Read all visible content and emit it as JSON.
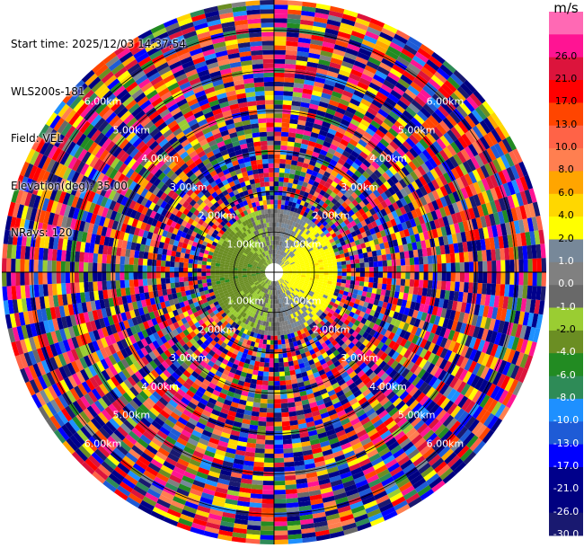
{
  "info": {
    "start_time": "Start time: 2025/12/03 14:37:54",
    "instrument": "WLS200s-181",
    "field": "Field: VEL",
    "elevation": "Elevation(deg): 35.00",
    "nrays": "NRays: 120"
  },
  "colorbar": {
    "unit": "m/s",
    "bins": [
      {
        "label": "-30.0",
        "color": "#191970"
      },
      {
        "label": "-26.0",
        "color": "#000080"
      },
      {
        "label": "-21.0",
        "color": "#00008b"
      },
      {
        "label": "-17.0",
        "color": "#0000ff"
      },
      {
        "label": "-13.0",
        "color": "#1e5bd6"
      },
      {
        "label": "-10.0",
        "color": "#1e90ff"
      },
      {
        "label": "-8.0",
        "color": "#2e8b57"
      },
      {
        "label": "-6.0",
        "color": "#228b22"
      },
      {
        "label": "-4.0",
        "color": "#6b8e23"
      },
      {
        "label": "-2.0",
        "color": "#9acd32"
      },
      {
        "label": "-1.0",
        "color": "#696969"
      },
      {
        "label": "0.0",
        "color": "#808080"
      },
      {
        "label": "1.0",
        "color": "#778899"
      },
      {
        "label": "2.0",
        "color": "#ffff00"
      },
      {
        "label": "4.0",
        "color": "#ffd700"
      },
      {
        "label": "6.0",
        "color": "#ffa500"
      },
      {
        "label": "8.0",
        "color": "#ff7f50"
      },
      {
        "label": "10.0",
        "color": "#ff6347"
      },
      {
        "label": "13.0",
        "color": "#ff4500"
      },
      {
        "label": "17.0",
        "color": "#ff0000"
      },
      {
        "label": "21.0",
        "color": "#dc143c"
      },
      {
        "label": "26.0",
        "color": "#ff1493"
      }
    ],
    "top_color": "#ff69b4"
  },
  "chart_data": {
    "type": "heatmap",
    "field": "VEL",
    "units": "m/s",
    "elevation_deg": 35.0,
    "n_rays": 120,
    "range_rings": [
      "1.00km",
      "2.00km",
      "3.00km",
      "4.00km",
      "5.00km",
      "6.00km"
    ],
    "range_rings_km": [
      1,
      2,
      3,
      4,
      5,
      6
    ],
    "max_range_km": 6.75,
    "value_range": [
      -30.0,
      30.0
    ],
    "vmin": -30.0,
    "vmax": 30.0,
    "grid": true,
    "gates_per_ray": 60
  }
}
